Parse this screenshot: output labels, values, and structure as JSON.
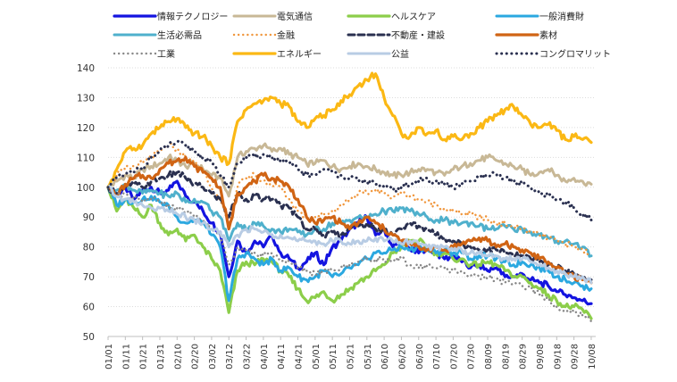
{
  "chart_data": {
    "type": "line",
    "title": "",
    "xlabel": "",
    "ylabel": "",
    "ylim": [
      50,
      140
    ],
    "yticks": [
      50,
      60,
      70,
      80,
      90,
      100,
      110,
      120,
      130,
      140
    ],
    "grid": true,
    "legend_position": "top",
    "x_tick_labels": [
      "01/01",
      "01/11",
      "01/21",
      "01/31",
      "02/10",
      "02/20",
      "03/02",
      "03/12",
      "03/22",
      "04/01",
      "04/11",
      "04/21",
      "05/01",
      "05/11",
      "05/21",
      "05/31",
      "06/10",
      "06/20",
      "06/30",
      "07/10",
      "07/20",
      "07/30",
      "08/09",
      "08/19",
      "08/29",
      "09/08",
      "09/18",
      "09/28",
      "10/08"
    ],
    "x_days_note": "values sampled every 5 days starting 01/01",
    "series": [
      {
        "name": "情報テクノロジー",
        "color": "#1414e0",
        "style": "solid-thick",
        "values": [
          100,
          97,
          100,
          96,
          99,
          100,
          98,
          99,
          102,
          97,
          95,
          92,
          88,
          85,
          70,
          82,
          78,
          82,
          80,
          84,
          78,
          76,
          73,
          75,
          78,
          74,
          80,
          82,
          86,
          88,
          90,
          84,
          86,
          80,
          82,
          79,
          78,
          80,
          78,
          76,
          77,
          75,
          73,
          74,
          72,
          73,
          70,
          70,
          71,
          69,
          68,
          67,
          65,
          64,
          63,
          62,
          61
        ]
      },
      {
        "name": "電気通信",
        "color": "#c8b896",
        "style": "solid",
        "values": [
          100,
          102,
          104,
          103,
          106,
          107,
          108,
          110,
          109,
          107,
          108,
          106,
          104,
          103,
          97,
          110,
          112,
          113,
          114,
          112,
          113,
          111,
          110,
          108,
          108,
          109,
          107,
          106,
          107,
          108,
          107,
          106,
          105,
          104,
          104,
          105,
          106,
          106,
          105,
          104,
          106,
          107,
          108,
          109,
          110,
          109,
          108,
          107,
          106,
          104,
          105,
          106,
          104,
          102,
          103,
          102,
          101
        ]
      },
      {
        "name": "ヘルスケア",
        "color": "#8cce4a",
        "style": "solid-thick",
        "values": [
          100,
          92,
          96,
          93,
          90,
          94,
          88,
          84,
          86,
          82,
          84,
          80,
          76,
          72,
          58,
          72,
          75,
          74,
          76,
          75,
          72,
          70,
          66,
          62,
          63,
          65,
          62,
          64,
          66,
          68,
          70,
          72,
          74,
          78,
          80,
          82,
          82,
          80,
          78,
          78,
          76,
          76,
          74,
          74,
          75,
          74,
          72,
          70,
          70,
          68,
          66,
          64,
          62,
          60,
          60,
          59,
          56
        ]
      },
      {
        "name": "一般消費財",
        "color": "#2ba8e0",
        "style": "solid",
        "values": [
          100,
          94,
          96,
          95,
          96,
          97,
          95,
          94,
          90,
          88,
          89,
          88,
          84,
          80,
          62,
          76,
          78,
          76,
          74,
          76,
          72,
          73,
          70,
          69,
          70,
          72,
          70,
          71,
          73,
          74,
          76,
          78,
          78,
          79,
          80,
          79,
          80,
          79,
          78,
          79,
          78,
          78,
          76,
          77,
          77,
          76,
          75,
          74,
          75,
          74,
          73,
          72,
          70,
          69,
          68,
          67,
          66
        ]
      },
      {
        "name": "生活必需品",
        "color": "#4fb0cc",
        "style": "solid",
        "values": [
          100,
          99,
          101,
          99,
          98,
          99,
          98,
          97,
          98,
          95,
          96,
          95,
          92,
          90,
          82,
          88,
          86,
          88,
          87,
          86,
          85,
          86,
          85,
          84,
          86,
          86,
          88,
          88,
          89,
          90,
          90,
          91,
          92,
          92,
          93,
          92,
          91,
          90,
          89,
          89,
          88,
          88,
          88,
          87,
          86,
          86,
          87,
          86,
          86,
          85,
          84,
          83,
          82,
          82,
          81,
          80,
          77
        ]
      },
      {
        "name": "金融",
        "color": "#f0963c",
        "style": "dotted",
        "values": [
          100,
          104,
          106,
          107,
          108,
          110,
          112,
          114,
          113,
          110,
          108,
          106,
          100,
          95,
          88,
          100,
          103,
          104,
          102,
          101,
          100,
          96,
          92,
          90,
          90,
          91,
          92,
          94,
          96,
          98,
          98,
          99,
          98,
          97,
          98,
          97,
          96,
          95,
          94,
          93,
          92,
          91,
          91,
          90,
          89,
          88,
          88,
          87,
          86,
          85,
          84,
          83,
          82,
          81,
          80,
          79,
          78
        ]
      },
      {
        "name": "不動産・建設",
        "color": "#2a3050",
        "style": "dashed",
        "values": [
          100,
          98,
          100,
          101,
          100,
          102,
          103,
          104,
          105,
          103,
          101,
          100,
          98,
          96,
          90,
          98,
          96,
          97,
          96,
          96,
          94,
          93,
          90,
          86,
          86,
          84,
          85,
          84,
          86,
          87,
          88,
          86,
          86,
          84,
          86,
          88,
          87,
          86,
          84,
          83,
          82,
          81,
          80,
          79,
          79,
          79,
          78,
          77,
          77,
          76,
          75,
          74,
          73,
          72,
          71,
          70,
          69
        ]
      },
      {
        "name": "素材",
        "color": "#d06414",
        "style": "solid-thick",
        "values": [
          100,
          97,
          101,
          103,
          104,
          103,
          106,
          108,
          109,
          110,
          107,
          105,
          103,
          100,
          86,
          98,
          100,
          102,
          104,
          103,
          102,
          100,
          96,
          90,
          88,
          89,
          90,
          88,
          86,
          88,
          90,
          88,
          86,
          84,
          82,
          81,
          80,
          79,
          80,
          79,
          80,
          81,
          82,
          83,
          82,
          80,
          81,
          80,
          79,
          78,
          76,
          75,
          73,
          71,
          70,
          69,
          68
        ]
      },
      {
        "name": "工業",
        "color": "#888888",
        "style": "dotted",
        "values": [
          100,
          97,
          98,
          96,
          95,
          96,
          95,
          94,
          93,
          92,
          90,
          89,
          86,
          84,
          74,
          80,
          79,
          78,
          77,
          78,
          76,
          75,
          73,
          72,
          71,
          72,
          72,
          73,
          74,
          75,
          76,
          76,
          76,
          75,
          76,
          74,
          73,
          74,
          73,
          73,
          72,
          72,
          70,
          70,
          70,
          69,
          68,
          68,
          67,
          66,
          64,
          62,
          60,
          59,
          58,
          57,
          55
        ]
      },
      {
        "name": "エネルギー",
        "color": "#fbb814",
        "style": "solid-thick",
        "values": [
          100,
          106,
          112,
          113,
          114,
          118,
          120,
          122,
          123,
          120,
          118,
          117,
          114,
          110,
          108,
          122,
          126,
          128,
          129,
          130,
          128,
          127,
          122,
          120,
          123,
          124,
          126,
          129,
          131,
          134,
          136,
          138,
          130,
          124,
          118,
          117,
          120,
          118,
          119,
          116,
          117,
          116,
          118,
          120,
          122,
          124,
          126,
          127,
          124,
          121,
          120,
          121,
          119,
          116,
          117,
          116,
          115
        ]
      },
      {
        "name": "公益",
        "color": "#b8cce4",
        "style": "solid",
        "values": [
          100,
          97,
          96,
          95,
          94,
          93,
          93,
          92,
          91,
          90,
          89,
          88,
          86,
          85,
          80,
          84,
          86,
          86,
          85,
          84,
          84,
          83,
          82,
          82,
          82,
          81,
          82,
          82,
          81,
          82,
          82,
          83,
          82,
          82,
          81,
          82,
          81,
          80,
          80,
          80,
          79,
          79,
          78,
          78,
          77,
          77,
          76,
          76,
          76,
          75,
          74,
          73,
          72,
          71,
          70,
          70,
          68
        ]
      },
      {
        "name": "コングロマリット",
        "color": "#2a3050",
        "style": "dotted-dark",
        "values": [
          100,
          103,
          104,
          105,
          107,
          110,
          112,
          114,
          115,
          114,
          112,
          110,
          108,
          104,
          100,
          108,
          110,
          110,
          111,
          110,
          109,
          108,
          106,
          104,
          104,
          106,
          105,
          104,
          103,
          102,
          102,
          101,
          100,
          99,
          100,
          101,
          102,
          103,
          102,
          101,
          100,
          101,
          102,
          103,
          104,
          104,
          103,
          102,
          101,
          100,
          98,
          97,
          96,
          95,
          93,
          91,
          89
        ]
      }
    ]
  }
}
